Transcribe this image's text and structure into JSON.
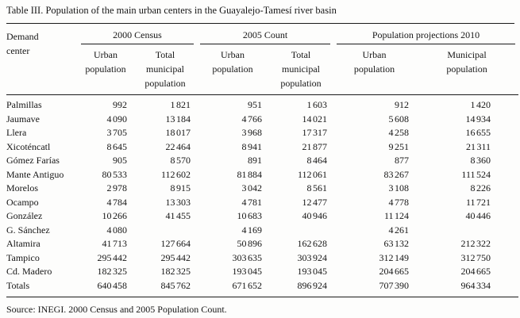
{
  "title": "Table III. Population of the main urban centers in the Guayalejo-Tamesí river basin",
  "source": "Source: INEGI. 2000 Census and 2005 Population Count.",
  "table": {
    "demand_center_header": "Demand\ncenter",
    "groups": [
      {
        "label": "2000 Census",
        "columns": [
          "Urban\npopulation",
          "Total\nmunicipal\npopulation"
        ]
      },
      {
        "label": "2005 Count",
        "columns": [
          "Urban\npopulation",
          "Total\nmunicipal\npopulation"
        ]
      },
      {
        "label": "Population projections 2010",
        "columns": [
          "Urban\npopulation",
          "Municipal\npopulation"
        ]
      }
    ],
    "rows": [
      {
        "label": "Palmillas",
        "values": [
          "992",
          "1 821",
          "951",
          "1 603",
          "912",
          "1 420"
        ]
      },
      {
        "label": "Jaumave",
        "values": [
          "4 090",
          "13 184",
          "4 766",
          "14 021",
          "5 608",
          "14 934"
        ]
      },
      {
        "label": "Llera",
        "values": [
          "3 705",
          "18 017",
          "3 968",
          "17 317",
          "4 258",
          "16 655"
        ]
      },
      {
        "label": "Xicoténcatl",
        "values": [
          "8 645",
          "22 464",
          "8 941",
          "21 877",
          "9 251",
          "21 311"
        ]
      },
      {
        "label": "Gómez Farías",
        "values": [
          "905",
          "8 570",
          "891",
          "8 464",
          "877",
          "8 360"
        ]
      },
      {
        "label": "Mante Antiguo",
        "values": [
          "80 533",
          "112 602",
          "81 884",
          "112 061",
          "83 267",
          "111 524"
        ]
      },
      {
        "label": "Morelos",
        "values": [
          "2 978",
          "8 915",
          "3 042",
          "8 561",
          "3 108",
          "8 226"
        ]
      },
      {
        "label": "Ocampo",
        "values": [
          "4 784",
          "13 303",
          "4 781",
          "12 477",
          "4 778",
          "11 721"
        ]
      },
      {
        "label": "González",
        "values": [
          "10 266",
          "41 455",
          "10 683",
          "40 946",
          "11 124",
          "40 446"
        ]
      },
      {
        "label": "G. Sánchez",
        "values": [
          "4 080",
          "",
          "4 169",
          "",
          "4 261",
          ""
        ]
      },
      {
        "label": "Altamira",
        "values": [
          "41 713",
          "127 664",
          "50 896",
          "162 628",
          "63 132",
          "212 322"
        ]
      },
      {
        "label": "Tampico",
        "values": [
          "295 442",
          "295 442",
          "303 635",
          "303 924",
          "312 149",
          "312 750"
        ]
      },
      {
        "label": "Cd. Madero",
        "values": [
          "182 325",
          "182 325",
          "193 045",
          "193 045",
          "204 665",
          "204 665"
        ]
      },
      {
        "label": "Totals",
        "values": [
          "640 458",
          "845 762",
          "671 652",
          "896 924",
          "707 390",
          "964 334"
        ]
      }
    ]
  }
}
